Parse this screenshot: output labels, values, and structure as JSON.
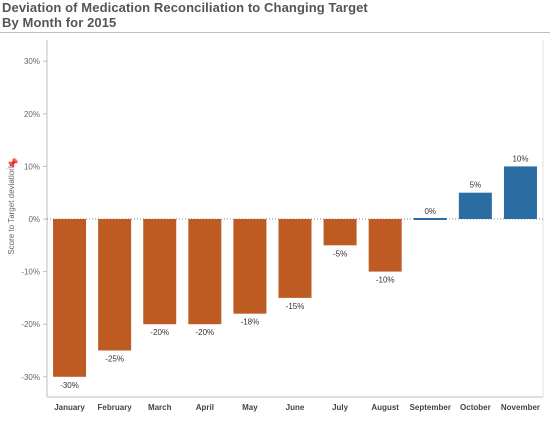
{
  "header": {
    "title_line1": "Deviation of Medication Reconciliation to Changing Target",
    "title_line2": "By Month for 2015"
  },
  "pin_icon": "pin-icon",
  "colors": {
    "negative": "#bd5b23",
    "positive": "#2b6ca3",
    "axis": "#999999",
    "grid": "#e8e8e8"
  },
  "chart_data": {
    "type": "bar",
    "categories": [
      "January",
      "February",
      "March",
      "April",
      "May",
      "June",
      "July",
      "August",
      "September",
      "October",
      "November"
    ],
    "values": [
      -30,
      -25,
      -20,
      -20,
      -18,
      -15,
      -5,
      -10,
      0,
      5,
      10
    ],
    "data_labels": [
      "-30%",
      "-25%",
      "-20%",
      "-20%",
      "-18%",
      "-15%",
      "-5%",
      "-10%",
      "0%",
      "5%",
      "10%"
    ],
    "ylabel": "Score to Target deviation",
    "yticks": [
      30,
      20,
      10,
      0,
      -10,
      -20,
      -30
    ],
    "ytick_labels": [
      "30%",
      "20%",
      "10%",
      "0%",
      "-10%",
      "-20%",
      "-30%"
    ],
    "ylim": [
      -32,
      32
    ],
    "grid": false
  }
}
